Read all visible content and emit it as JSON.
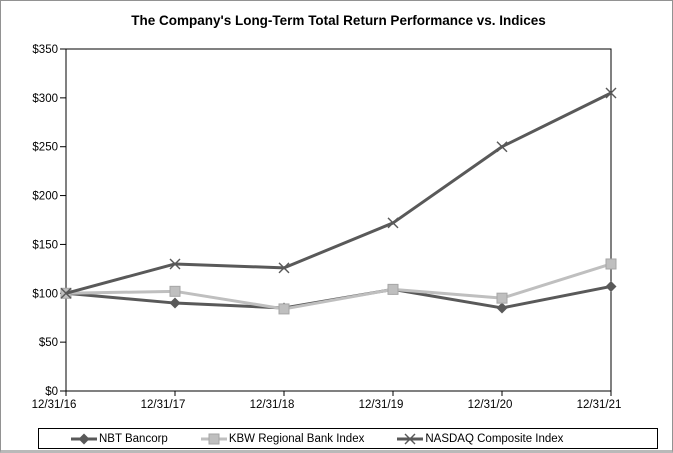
{
  "window": {
    "background": "#ffffff",
    "border_color": "#929292"
  },
  "chart_data": {
    "type": "line",
    "title": "The Company's Long-Term Total Return Performance vs. Indices",
    "x_labels": [
      "12/31/16",
      "12/31/17",
      "12/31/18",
      "12/31/19",
      "12/31/20",
      "12/31/21"
    ],
    "y_ticks": [
      {
        "value": 0,
        "label": "$0"
      },
      {
        "value": 50,
        "label": "$50"
      },
      {
        "value": 100,
        "label": "$100"
      },
      {
        "value": 150,
        "label": "$150"
      },
      {
        "value": 200,
        "label": "$200"
      },
      {
        "value": 250,
        "label": "$250"
      },
      {
        "value": 300,
        "label": "$300"
      },
      {
        "value": 350,
        "label": "$350"
      }
    ],
    "ylim": [
      0,
      350
    ],
    "grid": false,
    "legend_position": "bottom",
    "axis_color": "#000000",
    "series": [
      {
        "name": "NBT Bancorp",
        "marker": "diamond",
        "color": "#595959",
        "values": [
          100,
          90,
          85,
          104,
          85,
          107
        ]
      },
      {
        "name": "KBW Regional Bank Index",
        "marker": "square",
        "color": "#bfbfbf",
        "marker_stroke": "#a6a6a6",
        "values": [
          100,
          102,
          84,
          104,
          95,
          130
        ]
      },
      {
        "name": "NASDAQ Composite Index",
        "marker": "x",
        "color": "#595959",
        "values": [
          100,
          130,
          126,
          172,
          250,
          305
        ]
      }
    ]
  }
}
